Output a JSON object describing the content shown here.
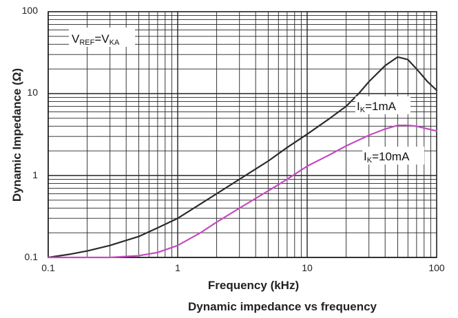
{
  "chart_data": {
    "type": "line",
    "title": "Dynamic impedance vs frequency",
    "xlabel": "Frequency (kHz)",
    "ylabel": "Dynamic Impedance (Ω)",
    "xscale": "log",
    "yscale": "log",
    "xlim": [
      0.1,
      100
    ],
    "ylim": [
      0.1,
      100
    ],
    "grid": true,
    "x_ticks": [
      "0.1",
      "1",
      "10",
      "100"
    ],
    "y_ticks": [
      "0.1",
      "1",
      "10",
      "100"
    ],
    "annotations": {
      "condition": {
        "main1": "V",
        "sub1": "REF",
        "main2": "=V",
        "sub2": "KA"
      },
      "ik1": {
        "main": "I",
        "sub": "K",
        "rest": "=1mA"
      },
      "ik10": {
        "main": "I",
        "sub": "K",
        "rest": "=10mA"
      }
    },
    "series": [
      {
        "name": "IK=1mA",
        "color": "#2b2b2b",
        "x": [
          0.1,
          0.15,
          0.2,
          0.3,
          0.5,
          0.7,
          1,
          1.5,
          2,
          3,
          5,
          7,
          10,
          15,
          20,
          25,
          30,
          40,
          50,
          60,
          70,
          85,
          100
        ],
        "y": [
          0.1,
          0.11,
          0.12,
          0.14,
          0.18,
          0.23,
          0.3,
          0.45,
          0.6,
          0.9,
          1.5,
          2.2,
          3.2,
          5,
          7,
          10,
          14,
          22,
          28,
          26,
          20,
          14,
          11
        ]
      },
      {
        "name": "IK=10mA",
        "color": "#c44bbf",
        "x": [
          0.1,
          0.2,
          0.3,
          0.5,
          0.7,
          1,
          1.5,
          2,
          3,
          5,
          7,
          10,
          15,
          20,
          30,
          40,
          50,
          60,
          70,
          80,
          100
        ],
        "y": [
          0.1,
          0.1,
          0.1,
          0.105,
          0.115,
          0.14,
          0.2,
          0.27,
          0.4,
          0.65,
          0.9,
          1.3,
          1.8,
          2.3,
          3.1,
          3.7,
          4.1,
          4.1,
          4.0,
          3.8,
          3.5
        ]
      }
    ]
  }
}
